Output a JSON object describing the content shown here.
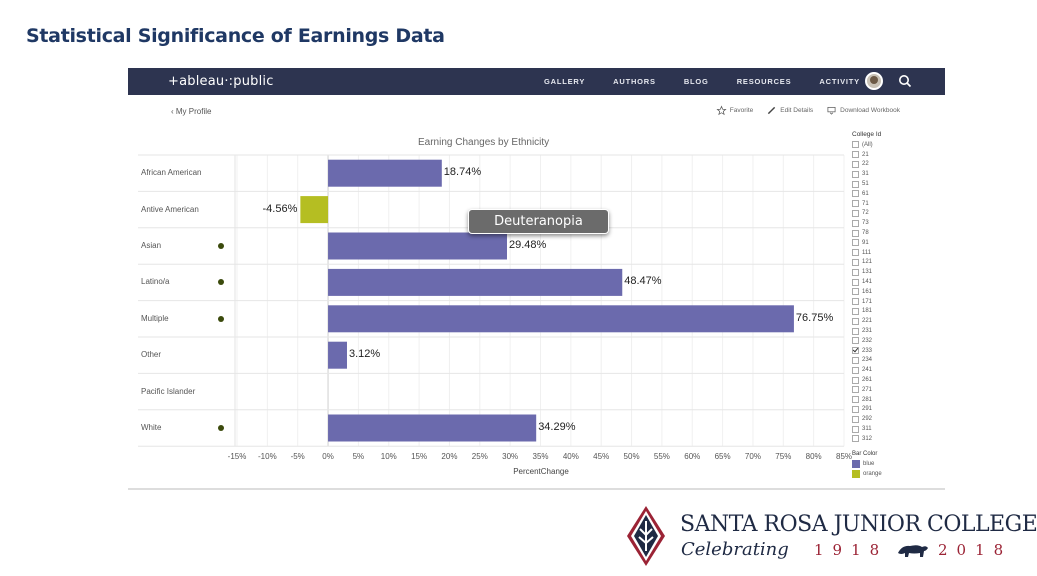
{
  "slide": {
    "title": "Statistical Significance of Earnings Data"
  },
  "nav": {
    "logo": "+ableau·:public",
    "items": [
      "GALLERY",
      "AUTHORS",
      "BLOG",
      "RESOURCES",
      "ACTIVITY"
    ]
  },
  "profile": {
    "back": "‹ My Profile",
    "favorite": "Favorite",
    "edit": "Edit Details",
    "download": "Download Workbook"
  },
  "chart_data": {
    "type": "bar",
    "title": "Earning Changes by Ethnicity",
    "xlabel": "PercentChange",
    "categories": [
      "African American",
      "Antive American",
      "Asian",
      "Latino/a",
      "Multiple",
      "Other",
      "Pacific Islander",
      "White"
    ],
    "values": [
      18.74,
      -4.56,
      29.48,
      48.47,
      76.75,
      3.12,
      null,
      34.29
    ],
    "value_labels": [
      "18.74%",
      "-4.56%",
      "29.48%",
      "48.47%",
      "76.75%",
      "3.12%",
      "",
      "34.29%"
    ],
    "bar_colors": [
      "#6b6aad",
      "#b5be22",
      "#6b6aad",
      "#6b6aad",
      "#6b6aad",
      "#6b6aad",
      "#6b6aad",
      "#6b6aad"
    ],
    "significance_dot": [
      false,
      false,
      true,
      true,
      true,
      false,
      false,
      true
    ],
    "xlim": [
      -15,
      85
    ],
    "xticks": [
      -15,
      -10,
      -5,
      0,
      5,
      10,
      15,
      20,
      25,
      30,
      35,
      40,
      45,
      50,
      55,
      60,
      65,
      70,
      75,
      80,
      85
    ],
    "xtick_labels": [
      "-15%",
      "-10%",
      "-5%",
      "0%",
      "5%",
      "10%",
      "15%",
      "20%",
      "25%",
      "30%",
      "35%",
      "40%",
      "45%",
      "50%",
      "55%",
      "60%",
      "65%",
      "70%",
      "75%",
      "80%",
      "85%"
    ],
    "grid": true
  },
  "tooltip": "Deuteranopia",
  "filter": {
    "title": "College Id",
    "items": [
      {
        "label": "(All)",
        "checked": false
      },
      {
        "label": "21",
        "checked": false
      },
      {
        "label": "22",
        "checked": false
      },
      {
        "label": "31",
        "checked": false
      },
      {
        "label": "51",
        "checked": false
      },
      {
        "label": "61",
        "checked": false
      },
      {
        "label": "71",
        "checked": false
      },
      {
        "label": "72",
        "checked": false
      },
      {
        "label": "73",
        "checked": false
      },
      {
        "label": "78",
        "checked": false
      },
      {
        "label": "91",
        "checked": false
      },
      {
        "label": "111",
        "checked": false
      },
      {
        "label": "121",
        "checked": false
      },
      {
        "label": "131",
        "checked": false
      },
      {
        "label": "141",
        "checked": false
      },
      {
        "label": "161",
        "checked": false
      },
      {
        "label": "171",
        "checked": false
      },
      {
        "label": "181",
        "checked": false
      },
      {
        "label": "221",
        "checked": false
      },
      {
        "label": "231",
        "checked": false
      },
      {
        "label": "232",
        "checked": false
      },
      {
        "label": "233",
        "checked": true
      },
      {
        "label": "234",
        "checked": false
      },
      {
        "label": "241",
        "checked": false
      },
      {
        "label": "261",
        "checked": false
      },
      {
        "label": "271",
        "checked": false
      },
      {
        "label": "281",
        "checked": false
      },
      {
        "label": "291",
        "checked": false
      },
      {
        "label": "292",
        "checked": false
      },
      {
        "label": "311",
        "checked": false
      },
      {
        "label": "312",
        "checked": false
      }
    ]
  },
  "legend": {
    "title": "Bar Color",
    "items": [
      {
        "label": "blue",
        "color": "#6b6aad"
      },
      {
        "label": "orange",
        "color": "#b5be22"
      }
    ]
  },
  "college": {
    "name": "SANTA ROSA JUNIOR COLLEGE",
    "celebrating": "Celebrating",
    "year_start": "1918",
    "year_end": "2018"
  }
}
